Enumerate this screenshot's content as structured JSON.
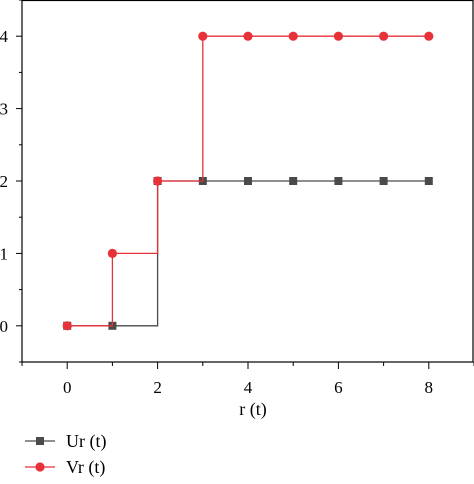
{
  "chart_data": {
    "type": "line",
    "step": "post",
    "x": [
      0,
      1,
      2,
      3,
      4,
      5,
      6,
      7,
      8
    ],
    "xlim": [
      -1,
      9
    ],
    "ylim": [
      -0.5,
      4.5
    ],
    "xticks": [
      0,
      2,
      4,
      6,
      8
    ],
    "xtick_labels": [
      "0",
      "2",
      "4",
      "6",
      "8"
    ],
    "yticks": [
      0,
      1,
      2,
      3,
      4
    ],
    "ytick_labels": [
      "0",
      "1",
      "2",
      "3",
      "4"
    ],
    "xlabel": "r (t)",
    "ylabel": "",
    "grid": false,
    "legend_position": "bottom-left",
    "series": [
      {
        "name": "Ur (t)",
        "values": [
          0,
          0,
          2,
          2,
          2,
          2,
          2,
          2,
          2
        ],
        "color": "#4a4a4a",
        "marker": "square"
      },
      {
        "name": "Vr (t)",
        "values": [
          0,
          1,
          2,
          4,
          4,
          4,
          4,
          4,
          4
        ],
        "color": "#e8323a",
        "marker": "circle"
      }
    ]
  }
}
